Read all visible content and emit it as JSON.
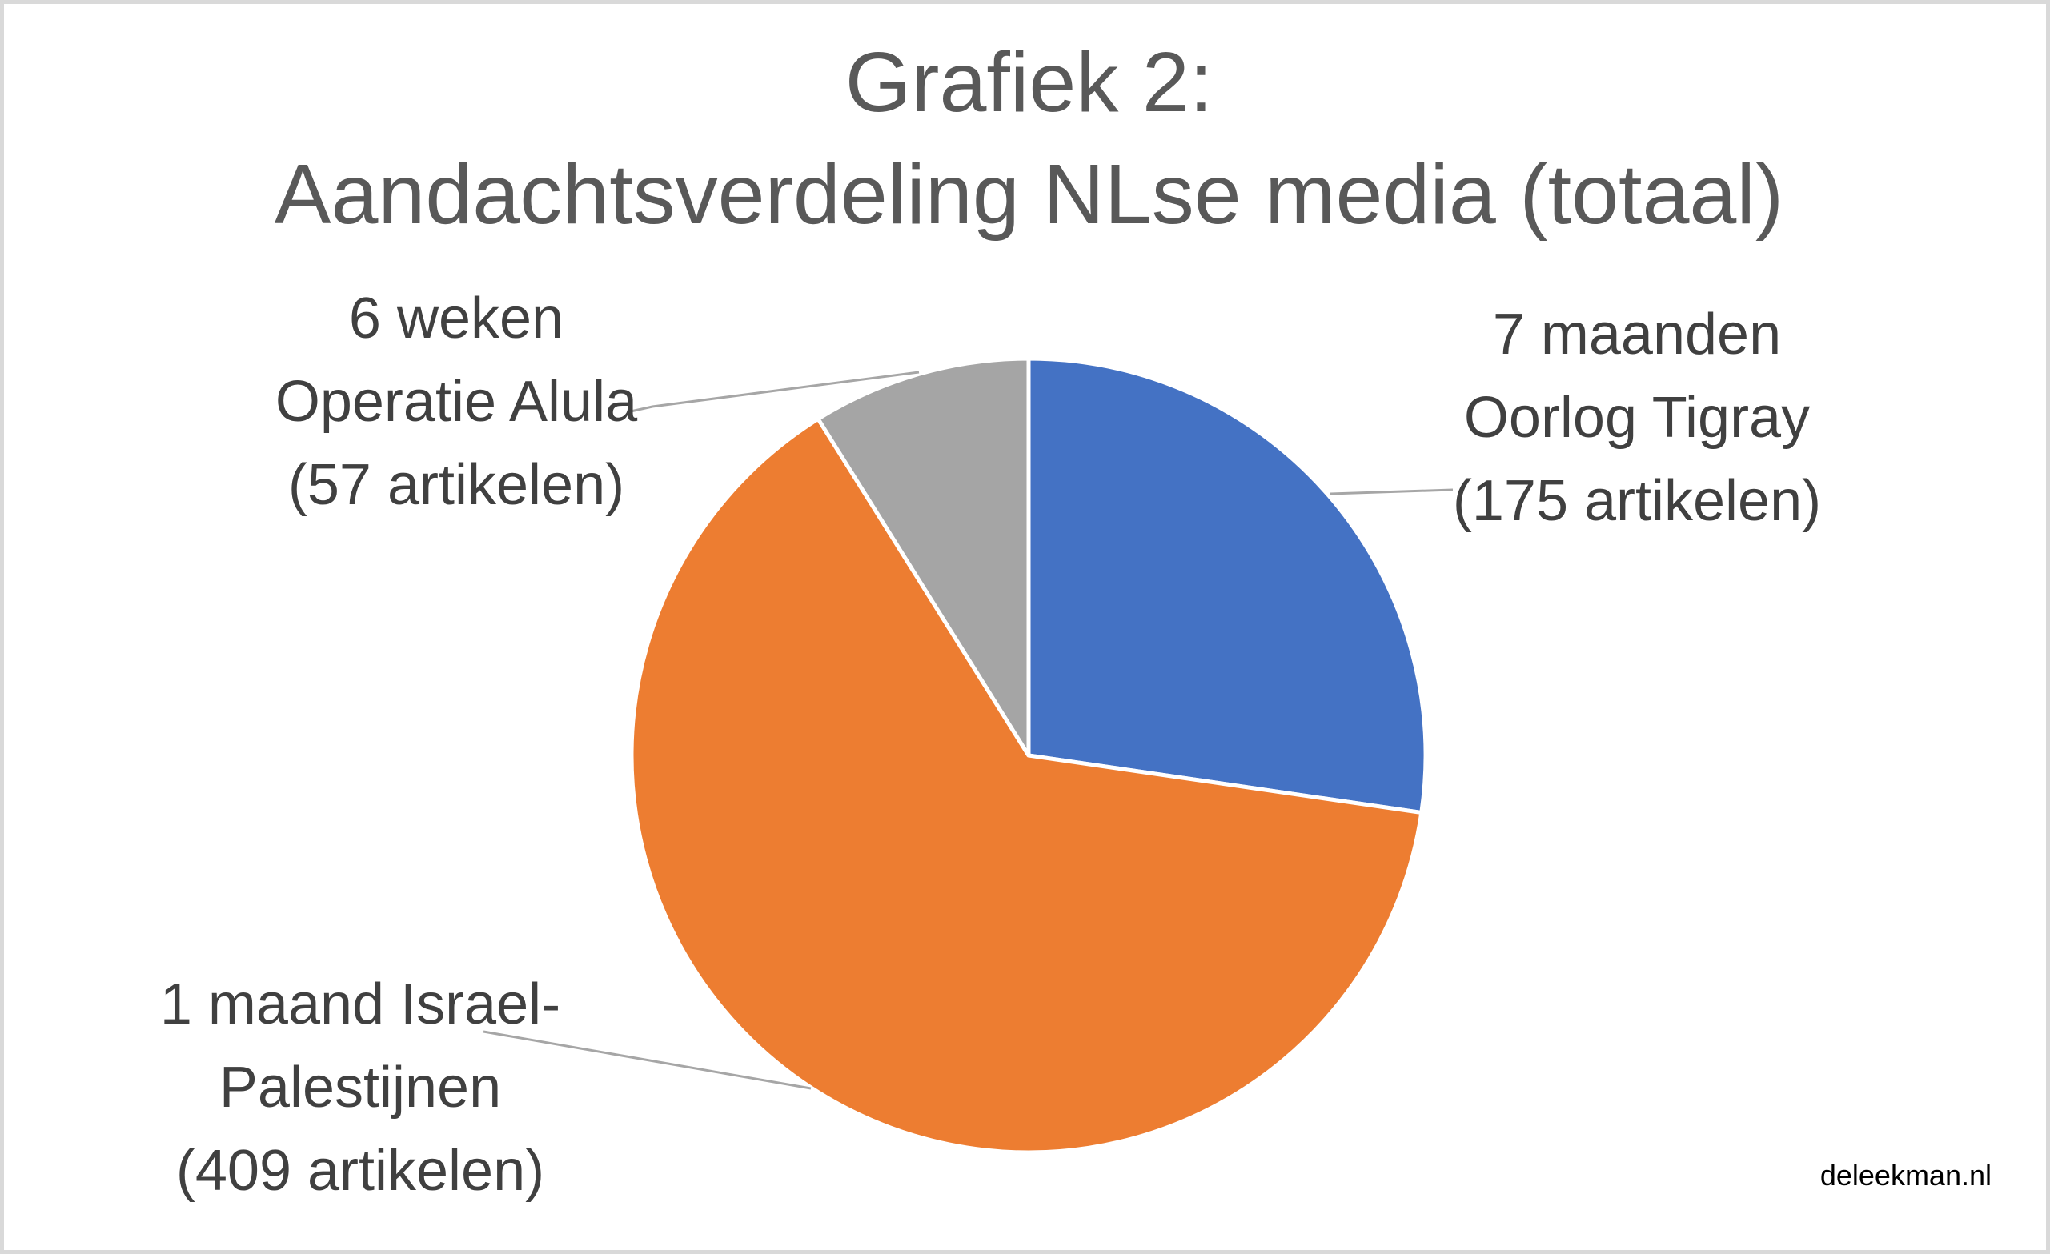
{
  "page": {
    "watermark": "deleekman.nl",
    "background_color": "#FFFFFF",
    "frame_border_color": "#D9D9D9"
  },
  "chart_data": {
    "type": "pie",
    "title_lines": [
      "Grafiek 2:",
      "Aandachtsverdeling NLse media (totaal)"
    ],
    "title_color": "#595959",
    "label_color": "#404040",
    "leader_line_color": "#A6A6A6",
    "separator_color": "#FFFFFF",
    "unit": "artikelen",
    "total": 641,
    "start_angle_deg": 0,
    "direction": "clockwise",
    "legend": "none",
    "slices": [
      {
        "label": "7 maanden Oorlog Tigray",
        "value": 175,
        "color": "#4472C4",
        "label_lines": [
          "7 maanden",
          "Oorlog Tigray",
          "(175 artikelen)"
        ]
      },
      {
        "label": "1 maand Israel-Palestijnen",
        "value": 409,
        "color": "#ED7D31",
        "label_lines": [
          "1 maand Israel-",
          "Palestijnen",
          "(409 artikelen)"
        ]
      },
      {
        "label": "6 weken Operatie Alula",
        "value": 57,
        "color": "#A5A5A5",
        "label_lines": [
          "6 weken",
          "Operatie Alula",
          "(57 artikelen)"
        ]
      }
    ]
  }
}
